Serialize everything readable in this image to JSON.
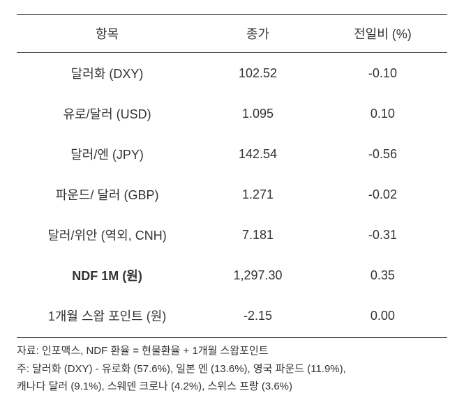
{
  "table": {
    "type": "table",
    "background_color": "#ffffff",
    "text_color": "#333333",
    "border_color": "#333333",
    "header_fontsize": 18,
    "cell_fontsize": 18,
    "columns": [
      {
        "key": "item",
        "label": "항목",
        "align": "center",
        "width_pct": 42
      },
      {
        "key": "price",
        "label": "종가",
        "align": "center",
        "width_pct": 28
      },
      {
        "key": "change",
        "label": "전일비 (%)",
        "align": "center",
        "width_pct": 30
      }
    ],
    "rows": [
      {
        "item": "달러화 (DXY)",
        "price": "102.52",
        "change": "-0.10",
        "bold": false
      },
      {
        "item": "유로/달러 (USD)",
        "price": "1.095",
        "change": "0.10",
        "bold": false
      },
      {
        "item": "달러/엔 (JPY)",
        "price": "142.54",
        "change": "-0.56",
        "bold": false
      },
      {
        "item": "파운드/ 달러 (GBP)",
        "price": "1.271",
        "change": "-0.02",
        "bold": false
      },
      {
        "item": "달러/위안 (역외, CNH)",
        "price": "7.181",
        "change": "-0.31",
        "bold": false
      },
      {
        "item": "NDF 1M (원)",
        "price": "1,297.30",
        "change": "0.35",
        "bold": true
      },
      {
        "item": "1개월 스왑 포인트 (원)",
        "price": "-2.15",
        "change": "0.00",
        "bold": false
      }
    ]
  },
  "footnotes": {
    "fontsize": 15,
    "text_color": "#333333",
    "lines": [
      "자료: 인포맥스, NDF 환율 = 현물환율 + 1개월 스왑포인트",
      "주: 달러화 (DXY) - 유로화 (57.6%), 일본 엔 (13.6%), 영국 파운드 (11.9%),",
      "캐나다 달러 (9.1%), 스웨덴 크로나 (4.2%), 스위스 프랑 (3.6%)"
    ]
  }
}
